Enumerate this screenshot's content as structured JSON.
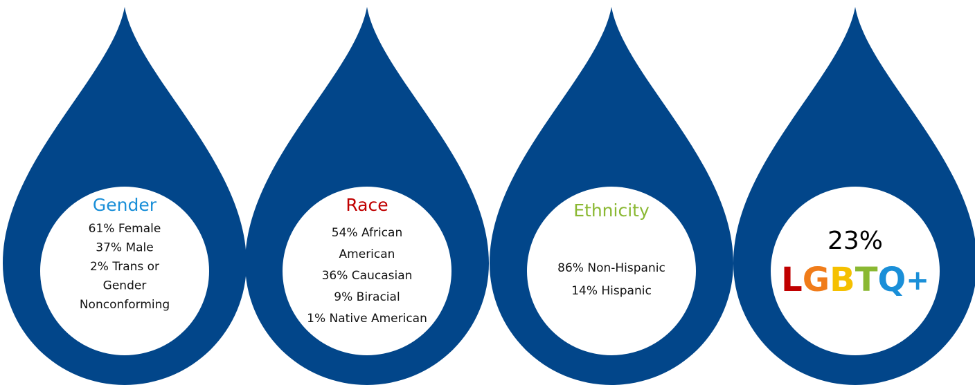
{
  "drops": [
    {
      "title": "Gender",
      "title_color": "#1a8fd8",
      "lines": [
        "61% Female",
        "37% Male",
        "2% Trans or",
        "Gender",
        "Nonconforming"
      ]
    },
    {
      "title": "Race",
      "title_color": "#c00000",
      "lines": [
        "54% African",
        "American",
        "36% Caucasian",
        "9% Biracial",
        "1% Native American"
      ]
    },
    {
      "title": "Ethnicity",
      "title_color": "#8ab832",
      "lines": [
        "86% Non-Hispanic",
        "14% Hispanic"
      ]
    },
    {
      "title": "23%",
      "title_color": "#000000",
      "letters": [
        {
          "text": "L",
          "color": "#c00000"
        },
        {
          "text": "G",
          "color": "#f07c1a"
        },
        {
          "text": "B",
          "color": "#f5c000"
        },
        {
          "text": "T",
          "color": "#8ab832"
        },
        {
          "text": "Q",
          "color": "#1a8fd8"
        },
        {
          "text": "+",
          "color": "#1a8fd8"
        }
      ]
    }
  ]
}
